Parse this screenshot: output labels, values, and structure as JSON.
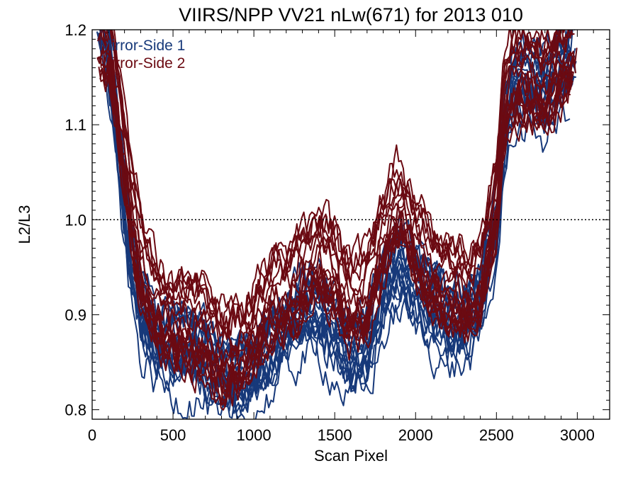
{
  "chart_data": {
    "type": "line",
    "title": "VIIRS/NPP VV21 nLw(671) for 2013 010",
    "xlabel": "Scan Pixel",
    "ylabel": "L2/L3",
    "xlim": [
      0,
      3200
    ],
    "ylim": [
      0.79,
      1.2
    ],
    "x_ticks": [
      0,
      500,
      1000,
      1500,
      2000,
      2500,
      3000
    ],
    "x_tick_labels": [
      "0",
      "500",
      "1000",
      "1500",
      "2000",
      "2500",
      "3000"
    ],
    "y_ticks": [
      0.8,
      0.9,
      1.0,
      1.1,
      1.2
    ],
    "y_tick_labels": [
      "0.8",
      "0.9",
      "1.0",
      "1.1",
      "1.2"
    ],
    "reference_line": {
      "y": 1.0,
      "style": "dotted"
    },
    "legend": {
      "placement": "top-left",
      "entries": [
        {
          "label": "Mirror-Side 1",
          "color": "#17397a"
        },
        {
          "label": "Mirror-Side 2",
          "color": "#6b0a12"
        }
      ]
    },
    "series": [
      {
        "name": "Mirror-Side 1",
        "color": "#17397a",
        "profile": {
          "x": [
            30,
            100,
            150,
            200,
            250,
            300,
            400,
            500,
            600,
            700,
            800,
            900,
            1000,
            1100,
            1200,
            1300,
            1400,
            1500,
            1600,
            1700,
            1800,
            1900,
            2000,
            2100,
            2200,
            2300,
            2400,
            2500,
            2550,
            2600,
            2700,
            2800,
            2900,
            3000
          ],
          "y": [
            1.2,
            1.16,
            1.08,
            1.0,
            0.93,
            0.89,
            0.86,
            0.85,
            0.85,
            0.84,
            0.82,
            0.82,
            0.83,
            0.85,
            0.87,
            0.89,
            0.89,
            0.87,
            0.84,
            0.85,
            0.91,
            0.94,
            0.92,
            0.9,
            0.88,
            0.88,
            0.9,
            0.98,
            1.08,
            1.13,
            1.13,
            1.12,
            1.14,
            1.17
          ]
        }
      },
      {
        "name": "Mirror-Side 2",
        "color": "#6b0a12",
        "profile": {
          "x": [
            30,
            100,
            150,
            200,
            250,
            300,
            400,
            500,
            600,
            700,
            800,
            900,
            1000,
            1100,
            1200,
            1300,
            1400,
            1500,
            1600,
            1700,
            1800,
            1900,
            2000,
            2100,
            2200,
            2300,
            2400,
            2500,
            2550,
            2600,
            2700,
            2800,
            2900,
            3000
          ],
          "y": [
            1.2,
            1.19,
            1.13,
            1.06,
            1.0,
            0.96,
            0.91,
            0.89,
            0.89,
            0.88,
            0.86,
            0.86,
            0.88,
            0.91,
            0.92,
            0.94,
            0.96,
            0.94,
            0.91,
            0.92,
            0.98,
            1.02,
            0.97,
            0.94,
            0.93,
            0.92,
            0.93,
            1.02,
            1.12,
            1.15,
            1.15,
            1.14,
            1.16,
            1.18
          ]
        }
      }
    ]
  }
}
